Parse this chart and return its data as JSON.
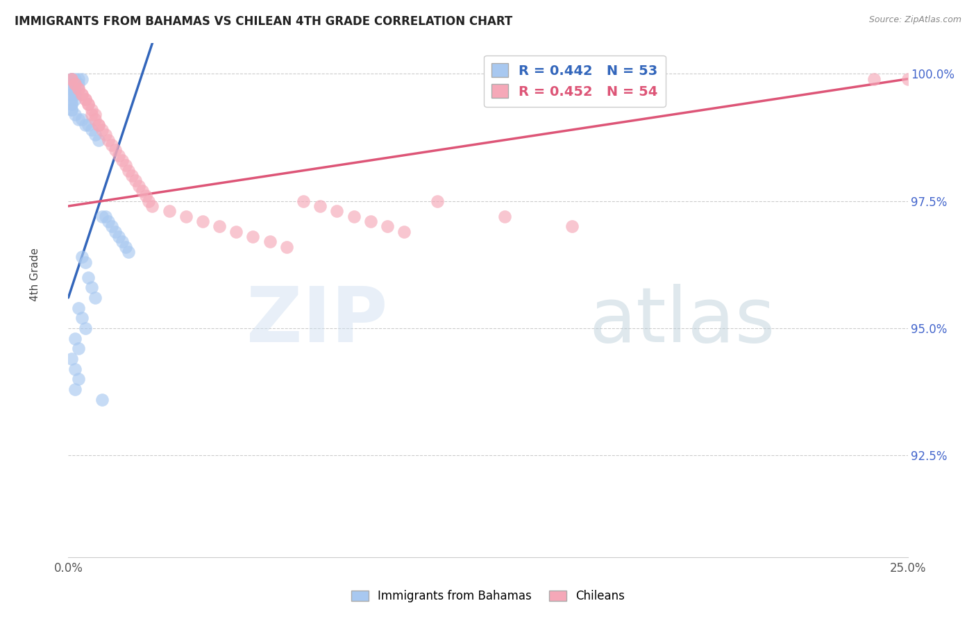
{
  "title": "IMMIGRANTS FROM BAHAMAS VS CHILEAN 4TH GRADE CORRELATION CHART",
  "source": "Source: ZipAtlas.com",
  "ylabel": "4th Grade",
  "R_blue": 0.442,
  "N_blue": 53,
  "R_pink": 0.452,
  "N_pink": 54,
  "legend_label_blue": "Immigrants from Bahamas",
  "legend_label_pink": "Chileans",
  "blue_color": "#a8c8f0",
  "pink_color": "#f5a8b8",
  "blue_line_color": "#3366bb",
  "pink_line_color": "#dd5577",
  "background_color": "#ffffff",
  "grid_color": "#cccccc",
  "xlim": [
    0.0,
    0.25
  ],
  "ylim": [
    0.905,
    1.006
  ],
  "yticks": [
    0.925,
    0.95,
    0.975,
    1.0
  ],
  "ytick_labels": [
    "92.5%",
    "95.0%",
    "97.5%",
    "100.0%"
  ],
  "watermark_zip_color": "#c8ddf0",
  "watermark_atlas_color": "#b8c8d8",
  "blue_x": [
    0.002,
    0.004,
    0.003,
    0.001,
    0.001,
    0.001,
    0.002,
    0.001,
    0.003,
    0.002,
    0.001,
    0.001,
    0.001,
    0.001,
    0.002,
    0.002,
    0.001,
    0.001,
    0.001,
    0.001,
    0.001,
    0.002,
    0.003,
    0.004,
    0.005,
    0.006,
    0.007,
    0.008,
    0.009,
    0.01,
    0.011,
    0.012,
    0.013,
    0.014,
    0.015,
    0.016,
    0.017,
    0.018,
    0.004,
    0.005,
    0.006,
    0.007,
    0.008,
    0.003,
    0.004,
    0.005,
    0.002,
    0.003,
    0.001,
    0.002,
    0.003,
    0.002,
    0.01
  ],
  "blue_y": [
    0.999,
    0.999,
    0.999,
    0.999,
    0.999,
    0.999,
    0.998,
    0.998,
    0.998,
    0.997,
    0.997,
    0.997,
    0.996,
    0.996,
    0.996,
    0.995,
    0.995,
    0.994,
    0.994,
    0.993,
    0.993,
    0.992,
    0.991,
    0.991,
    0.99,
    0.99,
    0.989,
    0.988,
    0.987,
    0.972,
    0.972,
    0.971,
    0.97,
    0.969,
    0.968,
    0.967,
    0.966,
    0.965,
    0.964,
    0.963,
    0.96,
    0.958,
    0.956,
    0.954,
    0.952,
    0.95,
    0.948,
    0.946,
    0.944,
    0.942,
    0.94,
    0.938,
    0.936
  ],
  "pink_x": [
    0.001,
    0.001,
    0.002,
    0.002,
    0.003,
    0.003,
    0.004,
    0.004,
    0.005,
    0.005,
    0.006,
    0.006,
    0.007,
    0.007,
    0.008,
    0.008,
    0.009,
    0.009,
    0.01,
    0.011,
    0.012,
    0.013,
    0.014,
    0.015,
    0.016,
    0.017,
    0.018,
    0.019,
    0.02,
    0.021,
    0.022,
    0.023,
    0.024,
    0.025,
    0.03,
    0.035,
    0.04,
    0.045,
    0.05,
    0.055,
    0.06,
    0.065,
    0.07,
    0.075,
    0.08,
    0.085,
    0.09,
    0.095,
    0.1,
    0.11,
    0.13,
    0.15,
    0.24,
    0.25
  ],
  "pink_y": [
    0.999,
    0.999,
    0.998,
    0.998,
    0.997,
    0.997,
    0.996,
    0.996,
    0.995,
    0.995,
    0.994,
    0.994,
    0.993,
    0.992,
    0.992,
    0.991,
    0.99,
    0.99,
    0.989,
    0.988,
    0.987,
    0.986,
    0.985,
    0.984,
    0.983,
    0.982,
    0.981,
    0.98,
    0.979,
    0.978,
    0.977,
    0.976,
    0.975,
    0.974,
    0.973,
    0.972,
    0.971,
    0.97,
    0.969,
    0.968,
    0.967,
    0.966,
    0.975,
    0.974,
    0.973,
    0.972,
    0.971,
    0.97,
    0.969,
    0.975,
    0.972,
    0.97,
    0.999,
    0.999
  ]
}
